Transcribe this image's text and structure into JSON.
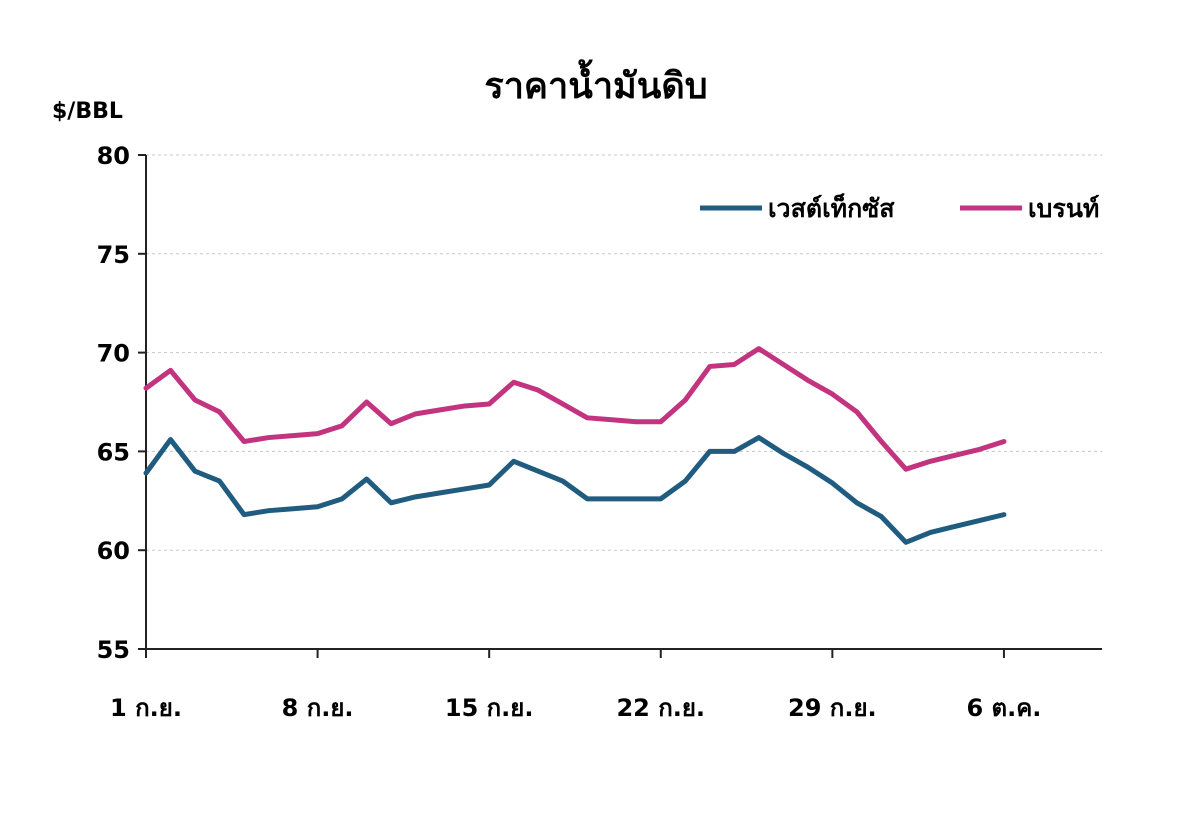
{
  "chart_data": {
    "type": "line",
    "title": "ราคาน้ำมันดิบ",
    "ylabel": "$/BBL",
    "xlabel": "",
    "ylim": [
      55,
      80
    ],
    "yticks": [
      55,
      60,
      65,
      70,
      75,
      80
    ],
    "grid": true,
    "legend_position": "top-right",
    "x_tick_labels": [
      "1 ก.ย.",
      "8 ก.ย.",
      "15 ก.ย.",
      "22 ก.ย.",
      "29 ก.ย.",
      "6 ต.ค."
    ],
    "x_tick_index": [
      0,
      7,
      14,
      21,
      28,
      35
    ],
    "x_index_range": [
      0,
      39
    ],
    "x": [
      0,
      1,
      2,
      3,
      4,
      5,
      6,
      7,
      8,
      9,
      10,
      11,
      12,
      13,
      14,
      15,
      16,
      17,
      18,
      19,
      20,
      21,
      22,
      23,
      24,
      25,
      26,
      27,
      28,
      29,
      30,
      31,
      32,
      33,
      34,
      35
    ],
    "series": [
      {
        "name": "เวสต์เท็กซัส",
        "color": "#1f5c80",
        "values": [
          63.9,
          65.6,
          64.0,
          63.5,
          61.8,
          62.0,
          62.1,
          62.2,
          62.6,
          63.6,
          62.4,
          62.7,
          62.9,
          63.1,
          63.3,
          64.5,
          64.0,
          63.5,
          62.6,
          62.6,
          62.6,
          62.6,
          63.5,
          65.0,
          65.0,
          65.7,
          64.9,
          64.2,
          63.4,
          62.4,
          61.7,
          60.4,
          60.9,
          61.2,
          61.5,
          61.8
        ]
      },
      {
        "name": "เบรนท์",
        "color": "#c2347f",
        "values": [
          68.2,
          69.1,
          67.6,
          67.0,
          65.5,
          65.7,
          65.8,
          65.9,
          66.3,
          67.5,
          66.4,
          66.9,
          67.1,
          67.3,
          67.4,
          68.5,
          68.1,
          67.4,
          66.7,
          66.6,
          66.5,
          66.5,
          67.6,
          69.3,
          69.4,
          70.2,
          69.4,
          68.6,
          67.9,
          67.0,
          65.5,
          64.1,
          64.5,
          64.8,
          65.1,
          65.5
        ]
      }
    ]
  }
}
